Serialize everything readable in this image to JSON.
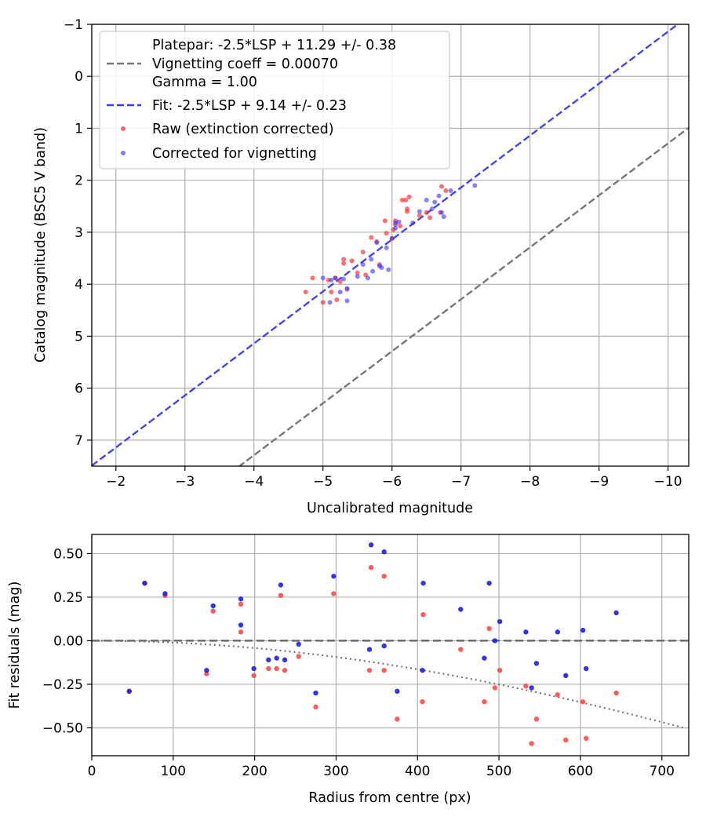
{
  "chart_data": [
    {
      "type": "scatter",
      "xlabel": "Uncalibrated magnitude",
      "ylabel": "Catalog magnitude (BSC5 V band)",
      "xlim": [
        -1.65,
        -10.3
      ],
      "ylim": [
        7.5,
        -1.0
      ],
      "x_inverted": true,
      "y_inverted": true,
      "xticks": [
        -2,
        -3,
        -4,
        -5,
        -6,
        -7,
        -8,
        -9,
        -10
      ],
      "xtick_labels": [
        "−2",
        "−3",
        "−4",
        "−5",
        "−6",
        "−7",
        "−8",
        "−9",
        "−10"
      ],
      "yticks": [
        -1,
        0,
        1,
        2,
        3,
        4,
        5,
        6,
        7
      ],
      "ytick_labels": [
        "−1",
        "0",
        "1",
        "2",
        "3",
        "4",
        "5",
        "6",
        "7"
      ],
      "grid": true,
      "legend_position": "upper-left",
      "legend": [
        {
          "label_lines": [
            "Platepar: -2.5*LSP + 11.29 +/- 0.38",
            "Vignetting coeff = 0.00070",
            "Gamma = 1.00"
          ],
          "style": "dashed",
          "color": "#777777"
        },
        {
          "label_lines": [
            "Fit: -2.5*LSP + 9.14 +/- 0.23"
          ],
          "style": "dashed",
          "color": "#3a3af0"
        },
        {
          "label_lines": [
            "Raw (extinction corrected)"
          ],
          "style": "dot",
          "color": "#ff3333"
        },
        {
          "label_lines": [
            "Corrected for vignetting"
          ],
          "style": "dot",
          "color": "#3333ff"
        }
      ],
      "lines": [
        {
          "name": "Platepar",
          "color": "#777777",
          "dash": "dashed",
          "slope": 1,
          "intercept": 11.29
        },
        {
          "name": "Fit",
          "color": "#3a3af0",
          "dash": "dashed",
          "slope": 1,
          "intercept": 9.14
        }
      ],
      "series": [
        {
          "name": "Raw (extinction corrected)",
          "color": "#ff3333",
          "points": [
            [
              -4.75,
              4.15
            ],
            [
              -4.85,
              3.88
            ],
            [
              -5.0,
              4.35
            ],
            [
              -5.08,
              3.92
            ],
            [
              -5.12,
              4.15
            ],
            [
              -5.2,
              4.3
            ],
            [
              -5.18,
              3.88
            ],
            [
              -5.25,
              3.95
            ],
            [
              -5.3,
              3.6
            ],
            [
              -5.35,
              4.1
            ],
            [
              -5.3,
              3.52
            ],
            [
              -5.42,
              3.55
            ],
            [
              -5.5,
              3.78
            ],
            [
              -5.58,
              3.38
            ],
            [
              -5.62,
              3.82
            ],
            [
              -5.7,
              3.1
            ],
            [
              -5.78,
              3.18
            ],
            [
              -5.82,
              3.62
            ],
            [
              -5.9,
              2.78
            ],
            [
              -5.92,
              3.02
            ],
            [
              -6.0,
              3.12
            ],
            [
              -6.02,
              2.95
            ],
            [
              -6.05,
              2.85
            ],
            [
              -6.12,
              2.88
            ],
            [
              -6.15,
              2.38
            ],
            [
              -6.2,
              2.38
            ],
            [
              -6.22,
              2.6
            ],
            [
              -6.22,
              2.55
            ],
            [
              -6.25,
              2.32
            ],
            [
              -6.4,
              2.68
            ],
            [
              -6.5,
              2.62
            ],
            [
              -6.55,
              2.72
            ],
            [
              -6.7,
              2.62
            ],
            [
              -6.72,
              2.12
            ],
            [
              -6.78,
              2.2
            ],
            [
              -6.05,
              2.78
            ]
          ]
        },
        {
          "name": "Corrected for vignetting",
          "color": "#3333ff",
          "points": [
            [
              -5.0,
              3.88
            ],
            [
              -5.1,
              4.35
            ],
            [
              -5.12,
              3.92
            ],
            [
              -5.18,
              3.88
            ],
            [
              -5.25,
              4.15
            ],
            [
              -5.3,
              3.9
            ],
            [
              -5.35,
              4.08
            ],
            [
              -5.35,
              4.32
            ],
            [
              -5.5,
              3.85
            ],
            [
              -5.58,
              3.62
            ],
            [
              -5.65,
              3.88
            ],
            [
              -5.7,
              3.52
            ],
            [
              -5.72,
              3.75
            ],
            [
              -5.78,
              3.2
            ],
            [
              -5.82,
              3.65
            ],
            [
              -5.85,
              3.68
            ],
            [
              -5.92,
              3.3
            ],
            [
              -5.95,
              3.72
            ],
            [
              -6.0,
              3.12
            ],
            [
              -6.05,
              2.82
            ],
            [
              -6.1,
              2.8
            ],
            [
              -6.3,
              2.82
            ],
            [
              -6.4,
              2.6
            ],
            [
              -6.5,
              2.38
            ],
            [
              -6.58,
              2.55
            ],
            [
              -6.62,
              2.42
            ],
            [
              -6.68,
              2.3
            ],
            [
              -6.72,
              2.62
            ],
            [
              -6.75,
              2.7
            ],
            [
              -6.85,
              2.2
            ],
            [
              -7.2,
              2.1
            ],
            [
              -6.05,
              2.92
            ]
          ]
        }
      ]
    },
    {
      "type": "scatter",
      "xlabel": "Radius from centre (px)",
      "ylabel": "Fit residuals (mag)",
      "xlim": [
        0,
        733
      ],
      "ylim": [
        -0.66,
        0.61
      ],
      "xticks": [
        0,
        100,
        200,
        300,
        400,
        500,
        600,
        700
      ],
      "xtick_labels": [
        "0",
        "100",
        "200",
        "300",
        "400",
        "500",
        "600",
        "700"
      ],
      "yticks": [
        0.5,
        0.25,
        0.0,
        -0.25,
        -0.5
      ],
      "ytick_labels": [
        "0.50",
        "0.25",
        "0.00",
        "−0.25",
        "−0.50"
      ],
      "grid": true,
      "zero_line": {
        "y": 0,
        "color": "#555555",
        "dash": "dashed"
      },
      "vignetting_curve": {
        "color": "#777777",
        "dash": "dotted",
        "coeff": 0.0007
      },
      "series": [
        {
          "name": "Raw (extinction corrected)",
          "color": "#ff3333",
          "points": [
            [
              46,
              -0.29
            ],
            [
              65,
              0.33
            ],
            [
              90,
              0.26
            ],
            [
              141,
              -0.19
            ],
            [
              149,
              0.17
            ],
            [
              183,
              0.21
            ],
            [
              183,
              0.05
            ],
            [
              199,
              -0.2
            ],
            [
              217,
              -0.16
            ],
            [
              227,
              -0.16
            ],
            [
              232,
              0.26
            ],
            [
              237,
              -0.17
            ],
            [
              254,
              -0.09
            ],
            [
              275,
              -0.38
            ],
            [
              297,
              0.27
            ],
            [
              343,
              0.42
            ],
            [
              341,
              -0.17
            ],
            [
              359,
              0.37
            ],
            [
              359,
              -0.17
            ],
            [
              375,
              -0.45
            ],
            [
              406,
              -0.35
            ],
            [
              407,
              0.15
            ],
            [
              453,
              -0.05
            ],
            [
              482,
              -0.35
            ],
            [
              488,
              0.07
            ],
            [
              495,
              -0.27
            ],
            [
              501,
              -0.17
            ],
            [
              533,
              -0.26
            ],
            [
              540,
              -0.59
            ],
            [
              546,
              -0.45
            ],
            [
              572,
              -0.31
            ],
            [
              582,
              -0.57
            ],
            [
              603,
              -0.35
            ],
            [
              607,
              -0.56
            ],
            [
              644,
              -0.3
            ]
          ]
        },
        {
          "name": "Corrected for vignetting",
          "color": "#1f1fe6",
          "points": [
            [
              46,
              -0.29
            ],
            [
              65,
              0.33
            ],
            [
              90,
              0.27
            ],
            [
              141,
              -0.17
            ],
            [
              149,
              0.2
            ],
            [
              183,
              0.24
            ],
            [
              183,
              0.09
            ],
            [
              199,
              -0.16
            ],
            [
              217,
              -0.11
            ],
            [
              227,
              -0.1
            ],
            [
              232,
              0.32
            ],
            [
              237,
              -0.11
            ],
            [
              254,
              -0.02
            ],
            [
              275,
              -0.3
            ],
            [
              297,
              0.37
            ],
            [
              343,
              0.55
            ],
            [
              341,
              -0.05
            ],
            [
              359,
              0.51
            ],
            [
              359,
              -0.03
            ],
            [
              375,
              -0.29
            ],
            [
              406,
              -0.17
            ],
            [
              407,
              0.33
            ],
            [
              453,
              0.18
            ],
            [
              482,
              -0.1
            ],
            [
              488,
              0.33
            ],
            [
              495,
              0.0
            ],
            [
              501,
              0.11
            ],
            [
              533,
              0.05
            ],
            [
              540,
              -0.27
            ],
            [
              546,
              -0.13
            ],
            [
              572,
              0.05
            ],
            [
              582,
              -0.2
            ],
            [
              603,
              0.06
            ],
            [
              607,
              -0.16
            ],
            [
              644,
              0.16
            ]
          ]
        }
      ]
    }
  ]
}
